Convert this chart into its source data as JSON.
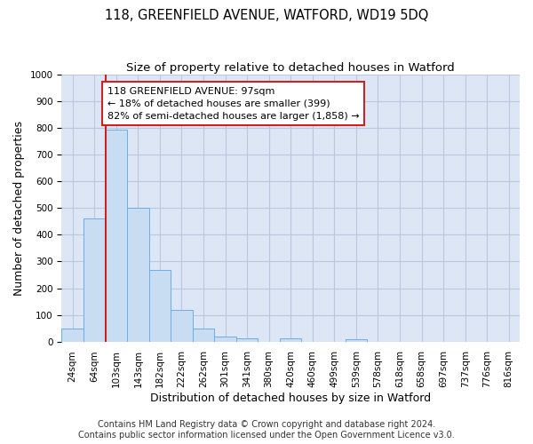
{
  "title": "118, GREENFIELD AVENUE, WATFORD, WD19 5DQ",
  "subtitle": "Size of property relative to detached houses in Watford",
  "xlabel": "Distribution of detached houses by size in Watford",
  "ylabel": "Number of detached properties",
  "categories": [
    "24sqm",
    "64sqm",
    "103sqm",
    "143sqm",
    "182sqm",
    "222sqm",
    "262sqm",
    "301sqm",
    "341sqm",
    "380sqm",
    "420sqm",
    "460sqm",
    "499sqm",
    "539sqm",
    "578sqm",
    "618sqm",
    "658sqm",
    "697sqm",
    "737sqm",
    "776sqm",
    "816sqm"
  ],
  "values": [
    47,
    460,
    793,
    500,
    268,
    120,
    50,
    20,
    12,
    0,
    12,
    0,
    0,
    10,
    0,
    0,
    0,
    0,
    0,
    0,
    0
  ],
  "bar_color": "#c9ddf2",
  "bar_edge_color": "#6aaee8",
  "vline_x": 1.5,
  "vline_color": "#cc2222",
  "annotation_line1": "118 GREENFIELD AVENUE: 97sqm",
  "annotation_line2": "← 18% of detached houses are smaller (399)",
  "annotation_line3": "82% of semi-detached houses are larger (1,858) →",
  "annotation_box_color": "#ffffff",
  "annotation_box_edge_color": "#cc2222",
  "ylim": [
    0,
    1000
  ],
  "yticks": [
    0,
    100,
    200,
    300,
    400,
    500,
    600,
    700,
    800,
    900,
    1000
  ],
  "background_color": "#ffffff",
  "axes_bg_color": "#dce6f5",
  "grid_color": "#b8c8e0",
  "footer_line1": "Contains HM Land Registry data © Crown copyright and database right 2024.",
  "footer_line2": "Contains public sector information licensed under the Open Government Licence v3.0.",
  "title_fontsize": 10.5,
  "subtitle_fontsize": 9.5,
  "xlabel_fontsize": 9,
  "ylabel_fontsize": 9,
  "tick_fontsize": 7.5,
  "annotation_fontsize": 8,
  "footer_fontsize": 7
}
